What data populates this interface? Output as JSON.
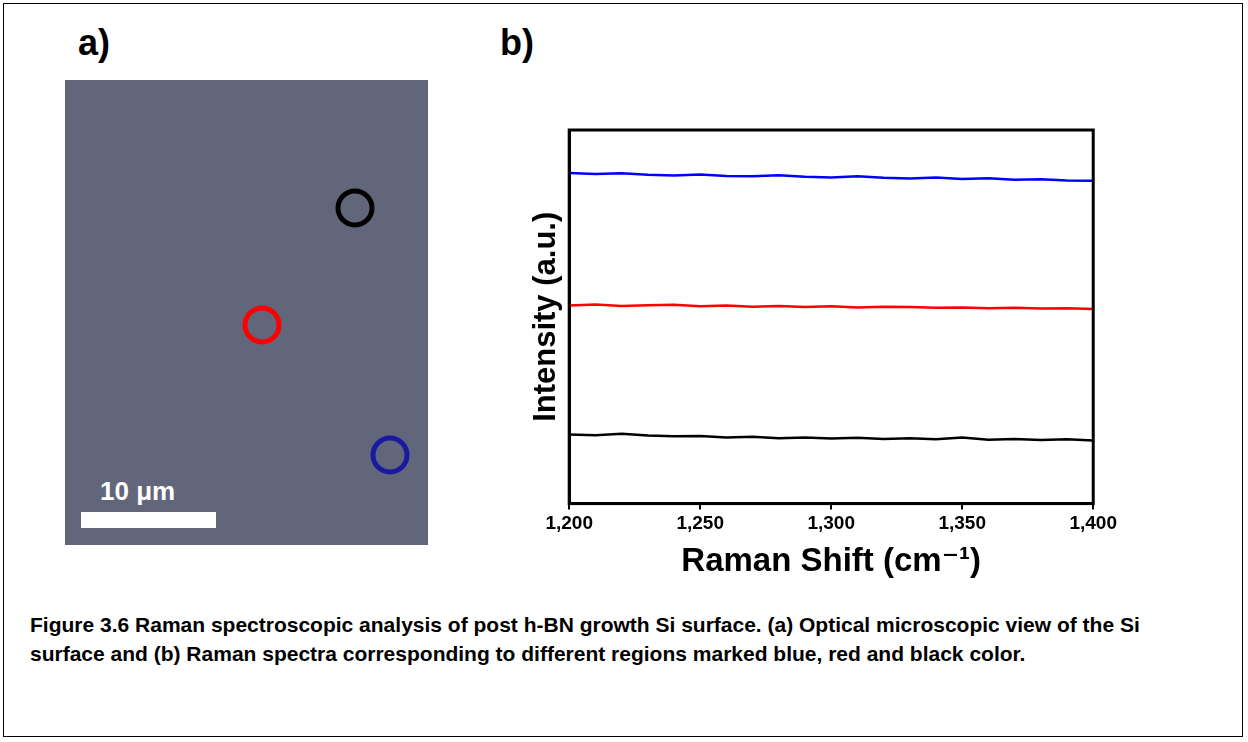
{
  "panel_labels": [
    "a)",
    "b)"
  ],
  "micrograph": {
    "scale_bar": "10 μm",
    "markers": [
      {
        "color": "#000000"
      },
      {
        "color": "#ff0000"
      },
      {
        "color": "#1a1aa0"
      }
    ]
  },
  "chart_data": {
    "type": "line",
    "xlabel": "Raman Shift (cm⁻¹)",
    "ylabel": "Intensity (a.u.)",
    "x": [
      1200,
      1210,
      1220,
      1230,
      1240,
      1250,
      1260,
      1270,
      1280,
      1290,
      1300,
      1310,
      1320,
      1330,
      1340,
      1350,
      1360,
      1370,
      1380,
      1390,
      1400
    ],
    "series": [
      {
        "color": "#0000ff",
        "values": [
          8.85,
          8.82,
          8.84,
          8.8,
          8.78,
          8.81,
          8.77,
          8.76,
          8.79,
          8.75,
          8.73,
          8.76,
          8.72,
          8.7,
          8.73,
          8.69,
          8.71,
          8.67,
          8.68,
          8.65,
          8.64
        ]
      },
      {
        "color": "#ff0000",
        "values": [
          5.3,
          5.33,
          5.29,
          5.31,
          5.32,
          5.28,
          5.3,
          5.27,
          5.29,
          5.26,
          5.28,
          5.25,
          5.27,
          5.26,
          5.24,
          5.25,
          5.23,
          5.24,
          5.22,
          5.23,
          5.21
        ]
      },
      {
        "color": "#000000",
        "values": [
          1.85,
          1.83,
          1.87,
          1.82,
          1.8,
          1.81,
          1.77,
          1.79,
          1.75,
          1.77,
          1.74,
          1.76,
          1.73,
          1.75,
          1.72,
          1.77,
          1.71,
          1.73,
          1.7,
          1.72,
          1.69
        ]
      }
    ],
    "xlim": [
      1200,
      1400
    ],
    "xticks": [
      1200,
      1250,
      1300,
      1350,
      1400
    ],
    "ylim": [
      0,
      10
    ],
    "grid": false,
    "tick_labels": "x"
  },
  "caption": "Figure 3.6 Raman spectroscopic analysis of post h-BN growth Si surface. (a) Optical microscopic view of the Si surface and (b) Raman spectra corresponding to different regions marked blue, red and black color."
}
